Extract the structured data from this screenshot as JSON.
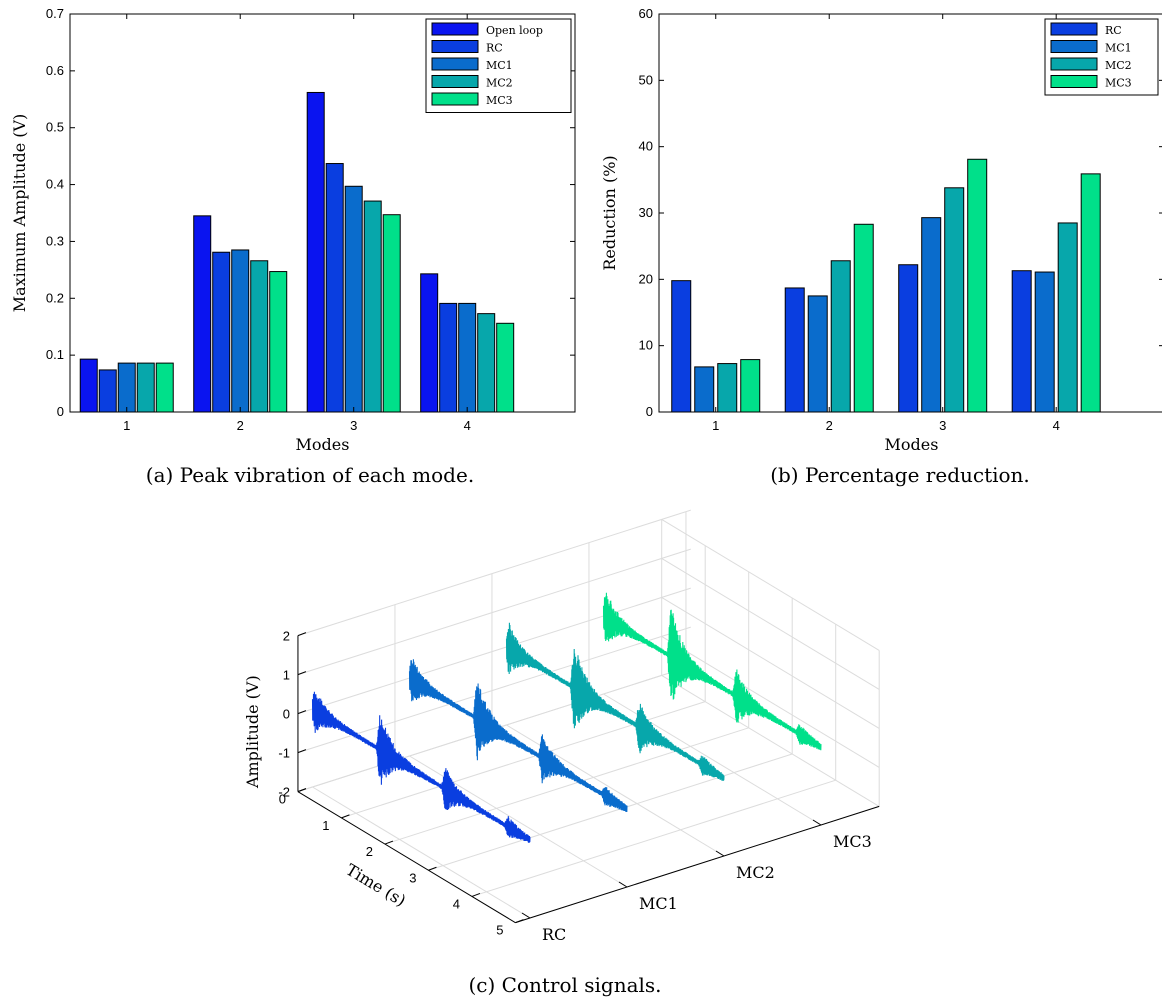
{
  "chart_data": [
    {
      "type": "bar",
      "caption": "(a) Peak vibration of each mode.",
      "xlabel": "Modes",
      "ylabel": "Maximum Amplitude (V)",
      "categories": [
        "1",
        "2",
        "3",
        "4"
      ],
      "ylim": [
        0,
        0.7
      ],
      "yticks": [
        "0",
        "0.1",
        "0.2",
        "0.3",
        "0.4",
        "0.5",
        "0.6",
        "0.7"
      ],
      "legend_position": "top-right",
      "series": [
        {
          "name": "Open loop",
          "color": "#0a14f0",
          "values": [
            0.093,
            0.345,
            0.562,
            0.243
          ]
        },
        {
          "name": "RC",
          "color": "#0a3ee0",
          "values": [
            0.074,
            0.281,
            0.437,
            0.191
          ]
        },
        {
          "name": "MC1",
          "color": "#0a6ccc",
          "values": [
            0.086,
            0.285,
            0.397,
            0.191
          ]
        },
        {
          "name": "MC2",
          "color": "#07a7ab",
          "values": [
            0.086,
            0.266,
            0.371,
            0.173
          ]
        },
        {
          "name": "MC3",
          "color": "#00e08a",
          "values": [
            0.086,
            0.247,
            0.347,
            0.156
          ]
        }
      ]
    },
    {
      "type": "bar",
      "caption": "(b) Percentage reduction.",
      "xlabel": "Modes",
      "ylabel": "Reduction (%)",
      "categories": [
        "1",
        "2",
        "3",
        "4"
      ],
      "ylim": [
        0,
        60
      ],
      "yticks": [
        "0",
        "10",
        "20",
        "30",
        "40",
        "50",
        "60"
      ],
      "legend_position": "top-right",
      "series": [
        {
          "name": "RC",
          "color": "#0a3ee0",
          "values": [
            19.8,
            18.7,
            22.2,
            21.3
          ]
        },
        {
          "name": "MC1",
          "color": "#0a6ccc",
          "values": [
            6.8,
            17.5,
            29.3,
            21.1
          ]
        },
        {
          "name": "MC2",
          "color": "#07a7ab",
          "values": [
            7.3,
            22.8,
            33.8,
            28.5
          ]
        },
        {
          "name": "MC3",
          "color": "#00e08a",
          "values": [
            7.9,
            28.3,
            38.1,
            35.9
          ]
        }
      ]
    },
    {
      "type": "line",
      "view": "3d",
      "caption": "(c) Control signals.",
      "xlabel": "Time (s)",
      "zlabel": "Amplitude (V)",
      "categories": [
        "RC",
        "MC1",
        "MC2",
        "MC3"
      ],
      "time_ticks": [
        "0",
        "1",
        "2",
        "3",
        "4",
        "5"
      ],
      "amplitude_ticks": [
        "2",
        "1",
        "0",
        "-1",
        "-2"
      ],
      "time_range": [
        0,
        5
      ],
      "amplitude_range": [
        -2,
        2
      ],
      "series": [
        {
          "name": "RC",
          "color": "#0a3ee0"
        },
        {
          "name": "MC1",
          "color": "#0a6ccc"
        },
        {
          "name": "MC2",
          "color": "#07a7ab"
        },
        {
          "name": "MC3",
          "color": "#00e08a"
        }
      ]
    }
  ]
}
